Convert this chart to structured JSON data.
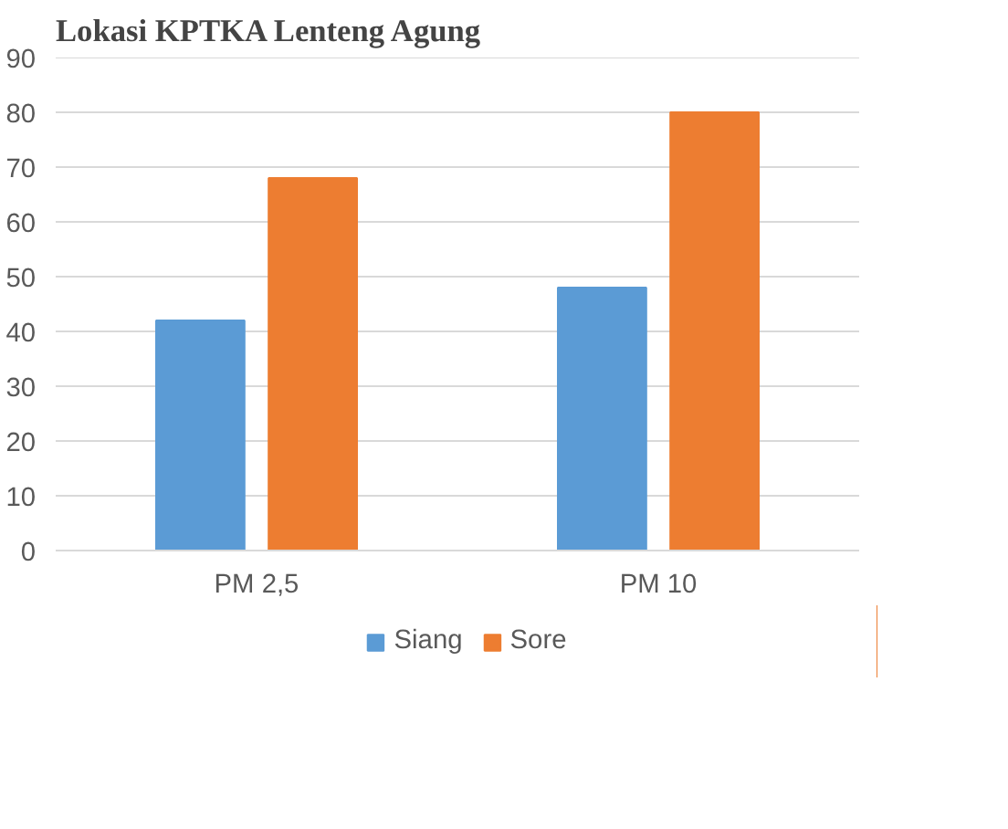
{
  "chart_data": {
    "type": "bar",
    "title": "Lokasi KPTKA Lenteng Agung",
    "categories": [
      "PM 2,5",
      "PM 10"
    ],
    "series": [
      {
        "name": "Siang",
        "color": "#5b9bd5",
        "values": [
          42,
          48
        ]
      },
      {
        "name": "Sore",
        "color": "#ed7d31",
        "values": [
          68,
          80
        ]
      }
    ],
    "ylim": [
      0,
      90
    ],
    "yticks": [
      0,
      10,
      20,
      30,
      40,
      50,
      60,
      70,
      80,
      90
    ],
    "grid": "y",
    "legend": "bottom"
  }
}
